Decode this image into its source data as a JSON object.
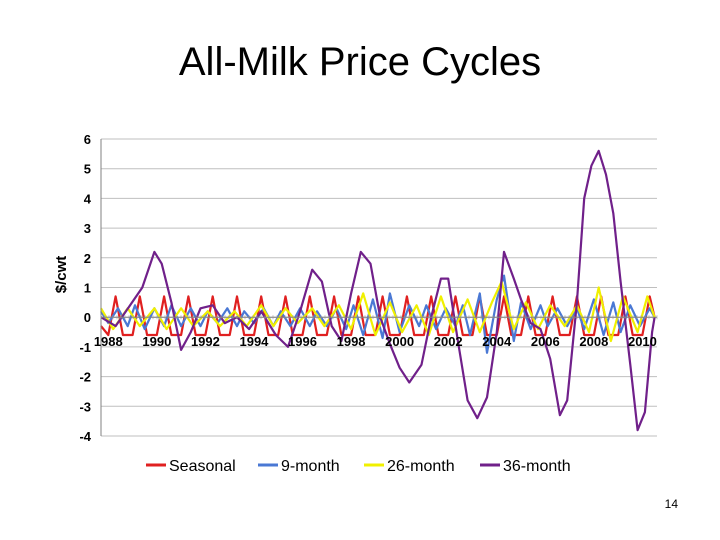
{
  "slide": {
    "title": "All-Milk Price Cycles",
    "page_number": "14"
  },
  "chart_data": {
    "type": "line",
    "title": "All-Milk Price Cycles",
    "ylabel": "$/cwt",
    "xlabel": "",
    "ylim": [
      -4,
      6
    ],
    "yticks": [
      6,
      5,
      4,
      3,
      2,
      1,
      0,
      -1,
      -2,
      -3,
      -4
    ],
    "xlim": [
      1987.7,
      2010.6
    ],
    "xticks": [
      "1988",
      "1990",
      "1992",
      "1994",
      "1996",
      "1998",
      "2000",
      "2002",
      "2004",
      "2006",
      "2008",
      "2010"
    ],
    "grid": true,
    "legend": "bottom",
    "series": [
      {
        "name": "Seasonal",
        "color": "#e02020",
        "points": [
          [
            1987.7,
            -0.3
          ],
          [
            1988.0,
            -0.6
          ],
          [
            1988.3,
            0.7
          ],
          [
            1988.6,
            -0.6
          ],
          [
            1989.0,
            -0.6
          ],
          [
            1989.3,
            0.7
          ],
          [
            1989.6,
            -0.6
          ],
          [
            1990.0,
            -0.6
          ],
          [
            1990.3,
            0.7
          ],
          [
            1990.6,
            -0.6
          ],
          [
            1991.0,
            -0.6
          ],
          [
            1991.3,
            0.7
          ],
          [
            1991.6,
            -0.6
          ],
          [
            1992.0,
            -0.6
          ],
          [
            1992.3,
            0.7
          ],
          [
            1992.6,
            -0.6
          ],
          [
            1993.0,
            -0.6
          ],
          [
            1993.3,
            0.7
          ],
          [
            1993.6,
            -0.6
          ],
          [
            1994.0,
            -0.6
          ],
          [
            1994.3,
            0.7
          ],
          [
            1994.6,
            -0.6
          ],
          [
            1995.0,
            -0.6
          ],
          [
            1995.3,
            0.7
          ],
          [
            1995.6,
            -0.6
          ],
          [
            1996.0,
            -0.6
          ],
          [
            1996.3,
            0.7
          ],
          [
            1996.6,
            -0.6
          ],
          [
            1997.0,
            -0.6
          ],
          [
            1997.3,
            0.7
          ],
          [
            1997.6,
            -0.6
          ],
          [
            1998.0,
            -0.6
          ],
          [
            1998.3,
            0.7
          ],
          [
            1998.6,
            -0.6
          ],
          [
            1999.0,
            -0.6
          ],
          [
            1999.3,
            0.7
          ],
          [
            1999.6,
            -0.6
          ],
          [
            2000.0,
            -0.6
          ],
          [
            2000.3,
            0.7
          ],
          [
            2000.6,
            -0.6
          ],
          [
            2001.0,
            -0.6
          ],
          [
            2001.3,
            0.7
          ],
          [
            2001.6,
            -0.6
          ],
          [
            2002.0,
            -0.6
          ],
          [
            2002.3,
            0.7
          ],
          [
            2002.6,
            -0.6
          ],
          [
            2003.0,
            -0.6
          ],
          [
            2003.3,
            0.7
          ],
          [
            2003.6,
            -0.6
          ],
          [
            2004.0,
            -0.6
          ],
          [
            2004.3,
            0.7
          ],
          [
            2004.6,
            -0.6
          ],
          [
            2005.0,
            -0.6
          ],
          [
            2005.3,
            0.7
          ],
          [
            2005.6,
            -0.6
          ],
          [
            2006.0,
            -0.6
          ],
          [
            2006.3,
            0.7
          ],
          [
            2006.6,
            -0.6
          ],
          [
            2007.0,
            -0.6
          ],
          [
            2007.3,
            0.7
          ],
          [
            2007.6,
            -0.6
          ],
          [
            2008.0,
            -0.6
          ],
          [
            2008.3,
            0.7
          ],
          [
            2008.6,
            -0.6
          ],
          [
            2009.0,
            -0.6
          ],
          [
            2009.3,
            0.7
          ],
          [
            2009.6,
            -0.6
          ],
          [
            2010.0,
            -0.6
          ],
          [
            2010.3,
            0.7
          ],
          [
            2010.5,
            0.0
          ]
        ]
      },
      {
        "name": "9-month",
        "color": "#4a78d4",
        "points": [
          [
            1987.7,
            0.2
          ],
          [
            1988.0,
            -0.2
          ],
          [
            1988.4,
            0.3
          ],
          [
            1988.8,
            -0.3
          ],
          [
            1989.1,
            0.4
          ],
          [
            1989.5,
            -0.4
          ],
          [
            1989.9,
            0.3
          ],
          [
            1990.3,
            -0.3
          ],
          [
            1990.6,
            0.4
          ],
          [
            1991.0,
            -0.3
          ],
          [
            1991.4,
            0.3
          ],
          [
            1991.8,
            -0.3
          ],
          [
            1992.1,
            0.2
          ],
          [
            1992.5,
            -0.2
          ],
          [
            1992.9,
            0.3
          ],
          [
            1993.3,
            -0.3
          ],
          [
            1993.6,
            0.2
          ],
          [
            1994.0,
            -0.2
          ],
          [
            1994.4,
            0.3
          ],
          [
            1994.8,
            -0.3
          ],
          [
            1995.1,
            0.2
          ],
          [
            1995.5,
            -0.3
          ],
          [
            1995.9,
            0.3
          ],
          [
            1996.3,
            -0.3
          ],
          [
            1996.6,
            0.2
          ],
          [
            1997.0,
            -0.3
          ],
          [
            1997.4,
            0.3
          ],
          [
            1997.8,
            -0.4
          ],
          [
            1998.1,
            0.4
          ],
          [
            1998.5,
            -0.6
          ],
          [
            1998.9,
            0.6
          ],
          [
            1999.3,
            -0.7
          ],
          [
            1999.6,
            0.8
          ],
          [
            2000.0,
            -0.5
          ],
          [
            2000.4,
            0.4
          ],
          [
            2000.8,
            -0.3
          ],
          [
            2001.1,
            0.4
          ],
          [
            2001.5,
            -0.4
          ],
          [
            2001.9,
            0.3
          ],
          [
            2002.3,
            -0.3
          ],
          [
            2002.6,
            0.4
          ],
          [
            2002.9,
            -0.6
          ],
          [
            2003.3,
            0.8
          ],
          [
            2003.6,
            -1.2
          ],
          [
            2004.0,
            0.6
          ],
          [
            2004.3,
            1.4
          ],
          [
            2004.7,
            -0.8
          ],
          [
            2005.0,
            0.5
          ],
          [
            2005.4,
            -0.4
          ],
          [
            2005.8,
            0.4
          ],
          [
            2006.1,
            -0.3
          ],
          [
            2006.5,
            0.3
          ],
          [
            2006.9,
            -0.3
          ],
          [
            2007.3,
            0.3
          ],
          [
            2007.6,
            -0.4
          ],
          [
            2008.0,
            0.6
          ],
          [
            2008.4,
            -0.6
          ],
          [
            2008.8,
            0.5
          ],
          [
            2009.1,
            -0.5
          ],
          [
            2009.5,
            0.4
          ],
          [
            2009.9,
            -0.3
          ],
          [
            2010.3,
            0.3
          ],
          [
            2010.5,
            0.0
          ]
        ]
      },
      {
        "name": "26-month",
        "color": "#f0f000",
        "points": [
          [
            1987.7,
            0.3
          ],
          [
            1988.2,
            -0.4
          ],
          [
            1988.8,
            0.3
          ],
          [
            1989.3,
            -0.3
          ],
          [
            1989.9,
            0.3
          ],
          [
            1990.4,
            -0.4
          ],
          [
            1991.0,
            0.3
          ],
          [
            1991.5,
            -0.3
          ],
          [
            1992.1,
            0.2
          ],
          [
            1992.6,
            -0.3
          ],
          [
            1993.2,
            0.2
          ],
          [
            1993.7,
            -0.3
          ],
          [
            1994.3,
            0.4
          ],
          [
            1994.8,
            -0.3
          ],
          [
            1995.3,
            0.3
          ],
          [
            1995.8,
            -0.2
          ],
          [
            1996.4,
            0.3
          ],
          [
            1996.9,
            -0.3
          ],
          [
            1997.5,
            0.4
          ],
          [
            1998.0,
            -0.4
          ],
          [
            1998.5,
            0.8
          ],
          [
            1999.0,
            -0.6
          ],
          [
            1999.6,
            0.5
          ],
          [
            2000.1,
            -0.5
          ],
          [
            2000.7,
            0.4
          ],
          [
            2001.2,
            -0.6
          ],
          [
            2001.7,
            0.7
          ],
          [
            2002.2,
            -0.5
          ],
          [
            2002.8,
            0.6
          ],
          [
            2003.3,
            -0.5
          ],
          [
            2003.8,
            0.5
          ],
          [
            2004.2,
            1.2
          ],
          [
            2004.7,
            -0.4
          ],
          [
            2005.2,
            0.5
          ],
          [
            2005.7,
            -0.4
          ],
          [
            2006.2,
            0.4
          ],
          [
            2006.8,
            -0.3
          ],
          [
            2007.3,
            0.4
          ],
          [
            2007.8,
            -0.5
          ],
          [
            2008.2,
            1.0
          ],
          [
            2008.7,
            -0.8
          ],
          [
            2009.2,
            0.7
          ],
          [
            2009.8,
            -0.5
          ],
          [
            2010.2,
            0.7
          ],
          [
            2010.5,
            0.0
          ]
        ]
      },
      {
        "name": "36-month",
        "color": "#70208a",
        "points": [
          [
            1987.7,
            0.0
          ],
          [
            1988.3,
            -0.3
          ],
          [
            1988.9,
            0.4
          ],
          [
            1989.4,
            1.0
          ],
          [
            1989.9,
            2.2
          ],
          [
            1990.2,
            1.8
          ],
          [
            1990.6,
            0.5
          ],
          [
            1991.0,
            -1.1
          ],
          [
            1991.4,
            -0.5
          ],
          [
            1991.8,
            0.3
          ],
          [
            1992.3,
            0.4
          ],
          [
            1992.8,
            -0.2
          ],
          [
            1993.3,
            0.0
          ],
          [
            1993.8,
            -0.4
          ],
          [
            1994.3,
            0.2
          ],
          [
            1994.9,
            -0.6
          ],
          [
            1995.4,
            -1.0
          ],
          [
            1995.9,
            0.2
          ],
          [
            1996.4,
            1.6
          ],
          [
            1996.8,
            1.2
          ],
          [
            1997.2,
            -0.3
          ],
          [
            1997.6,
            -0.8
          ],
          [
            1998.0,
            0.8
          ],
          [
            1998.4,
            2.2
          ],
          [
            1998.8,
            1.8
          ],
          [
            1999.2,
            0.0
          ],
          [
            1999.6,
            -0.9
          ],
          [
            2000.0,
            -1.7
          ],
          [
            2000.4,
            -2.2
          ],
          [
            2000.9,
            -1.6
          ],
          [
            2001.3,
            0.0
          ],
          [
            2001.7,
            1.3
          ],
          [
            2002.0,
            1.3
          ],
          [
            2002.4,
            -0.8
          ],
          [
            2002.8,
            -2.8
          ],
          [
            2003.2,
            -3.4
          ],
          [
            2003.6,
            -2.7
          ],
          [
            2004.0,
            -0.5
          ],
          [
            2004.3,
            2.2
          ],
          [
            2004.7,
            1.3
          ],
          [
            2005.0,
            0.6
          ],
          [
            2005.4,
            -0.2
          ],
          [
            2005.8,
            -0.4
          ],
          [
            2006.2,
            -1.4
          ],
          [
            2006.6,
            -3.3
          ],
          [
            2006.9,
            -2.8
          ],
          [
            2007.3,
            0.5
          ],
          [
            2007.6,
            4.0
          ],
          [
            2007.9,
            5.1
          ],
          [
            2008.2,
            5.6
          ],
          [
            2008.5,
            4.8
          ],
          [
            2008.8,
            3.5
          ],
          [
            2009.1,
            1.2
          ],
          [
            2009.5,
            -1.6
          ],
          [
            2009.8,
            -3.8
          ],
          [
            2010.1,
            -3.2
          ],
          [
            2010.4,
            -0.5
          ],
          [
            2010.5,
            0.0
          ]
        ]
      }
    ]
  }
}
